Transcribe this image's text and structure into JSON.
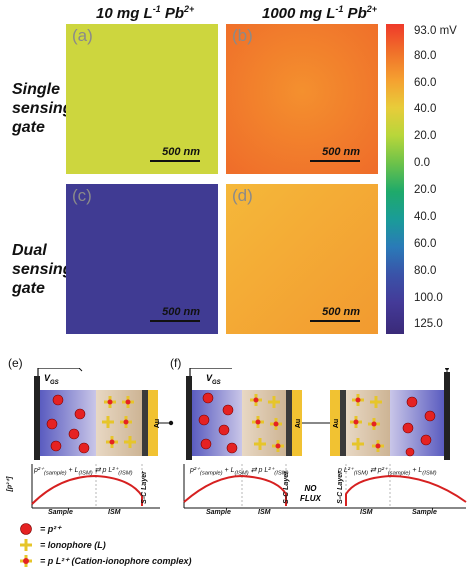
{
  "column_headers": {
    "left": {
      "prefix": "10 mg L",
      "exp1": "-1",
      "mid": " Pb",
      "exp2": "2+"
    },
    "right": {
      "prefix": "1000 mg L",
      "exp1": "-1",
      "mid": " Pb",
      "exp2": "2+"
    }
  },
  "row_headers": {
    "single": [
      "Single",
      "sensing",
      "gate"
    ],
    "dual": [
      "Dual",
      "sensing",
      "gate"
    ]
  },
  "panels": [
    {
      "letter": "(a)",
      "scale": "500 nm",
      "color": "#c9d43a"
    },
    {
      "letter": "(b)",
      "scale": "500 nm",
      "color": "#f07a2c"
    },
    {
      "letter": "(c)",
      "scale": "500 nm",
      "color": "#3c3a8f"
    },
    {
      "letter": "(d)",
      "scale": "500 nm",
      "color": "#f3a834"
    }
  ],
  "colorbar": {
    "labels": [
      "93.0 mV",
      "80.0",
      "60.0",
      "40.0",
      "20.0",
      "0.0",
      "20.0",
      "40.0",
      "60.0",
      "80.0",
      "100.0",
      "125.0"
    ],
    "colors": [
      "#ef3a2a",
      "#f0702a",
      "#f5a030",
      "#e8cc3a",
      "#b8d63a",
      "#6cc24a",
      "#1faa6a",
      "#1a9c98",
      "#2a7ab8",
      "#3a52a8",
      "#443a98",
      "#3a2a78"
    ]
  },
  "diagram_e": {
    "letter": "(e)",
    "vgs": "V",
    "vgs_sub": "GS",
    "au": "Au",
    "axis_label": "[p²⁺]",
    "eq_left": "p²⁺",
    "eq_left_sub": "(sample)",
    "eq_plus": "+ L",
    "eq_plus_sub": "(ISM)",
    "eq_right": "p L²⁺",
    "eq_right_sub": "(ISM)",
    "regions": [
      "Sample",
      "ISM",
      "S-C Layer"
    ]
  },
  "diagram_f": {
    "letter": "(f)",
    "vgs": "V",
    "vgs_sub": "GS",
    "au_left": "Au",
    "au_right": "Au",
    "eq_left": "p²⁺",
    "eq_left_sub": "(sample)",
    "eq_plus_left": "+ L",
    "eq_plus_left_sub": "(ISM)",
    "eq_mid_left": "p L²⁺",
    "eq_mid_left_sub": "(ISM)",
    "no_flux": [
      "NO",
      "FLUX"
    ],
    "eq_mid_right": "p L²⁺",
    "eq_mid_right_sub": "(ISM)",
    "eq_right": "p²⁺",
    "eq_right_sub": "(sample)",
    "eq_plus_right": "+ L",
    "eq_plus_right_sub": "(ISM)",
    "regions_left": [
      "Sample",
      "ISM",
      "S-C Layer"
    ],
    "regions_right": [
      "S-C Layer",
      "ISM",
      "Sample"
    ]
  },
  "legend": [
    {
      "icon": "cation",
      "text": "= p²⁺"
    },
    {
      "icon": "ionophore",
      "text": "= Ionophore (L)"
    },
    {
      "icon": "complex",
      "text": "= p L²⁺ (Cation-ionophore complex)"
    }
  ]
}
